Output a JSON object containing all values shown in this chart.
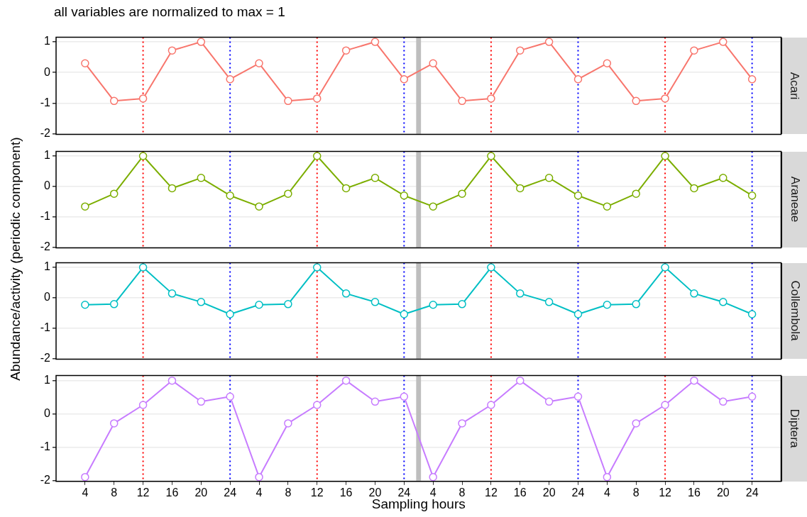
{
  "chart_data": [
    {
      "type": "line",
      "title": "all variables are normalized to max = 1",
      "ylabel": "Abundance/activity (periodic component)",
      "x": [
        "--01-01T04:00",
        "--01-01T08:00",
        "--01-01T12:00",
        "--01-01T16:00",
        "--01-01T20:00",
        "--01-02T00:00",
        "--01-02T04:00",
        "--01-02T08:00",
        "--01-02T12:00",
        "--01-02T16:00",
        "--01-02T20:00",
        "--01-03T00:00",
        "--01-03T04:00",
        "--01-03T08:00",
        "--01-03T12:00",
        "--01-03T16:00",
        "--01-03T20:00",
        "--01-04T00:00",
        "--01-04T04:00",
        "--01-04T08:00",
        "--01-04T12:00",
        "--01-04T16:00",
        "--01-04T20:00",
        "--01-05T00:00"
      ],
      "series": [
        {
          "name": "Acari",
          "color": "#f8766d",
          "values": [
            0.3,
            -0.93,
            -0.85,
            0.72,
            1,
            -0.22,
            0.3,
            -0.93,
            -0.85,
            0.72,
            1,
            -0.22,
            0.3,
            -0.93,
            -0.85,
            0.72,
            1,
            -0.22,
            0.3,
            -0.93,
            -0.85,
            0.72,
            1,
            -0.22
          ]
        }
      ],
      "xlim": [
        "--01-01T00:00",
        "--01-05T04:00"
      ],
      "xticks": [
        {
          "value": "--01-01T04:00",
          "label": "4"
        },
        {
          "value": "--01-01T08:00",
          "label": "8"
        },
        {
          "value": "--01-01T12:00",
          "label": "12"
        },
        {
          "value": "--01-01T16:00",
          "label": "16"
        },
        {
          "value": "--01-01T20:00",
          "label": "20"
        },
        {
          "value": "--01-02T00:00",
          "label": "24"
        },
        {
          "value": "--01-02T04:00",
          "label": "4"
        },
        {
          "value": "--01-02T08:00",
          "label": "8"
        },
        {
          "value": "--01-02T12:00",
          "label": "12"
        },
        {
          "value": "--01-02T16:00",
          "label": "16"
        },
        {
          "value": "--01-02T20:00",
          "label": "20"
        },
        {
          "value": "--01-03T00:00",
          "label": "24"
        },
        {
          "value": "--01-03T04:00",
          "label": "4"
        },
        {
          "value": "--01-03T08:00",
          "label": "8"
        },
        {
          "value": "--01-03T12:00",
          "label": "12"
        },
        {
          "value": "--01-03T16:00",
          "label": "16"
        },
        {
          "value": "--01-03T20:00",
          "label": "20"
        },
        {
          "value": "--01-04T00:00",
          "label": "24"
        },
        {
          "value": "--01-04T04:00",
          "label": "4"
        },
        {
          "value": "--01-04T08:00",
          "label": "8"
        },
        {
          "value": "--01-04T12:00",
          "label": "12"
        },
        {
          "value": "--01-04T16:00",
          "label": "16"
        },
        {
          "value": "--01-04T20:00",
          "label": "20"
        },
        {
          "value": "--01-05T00:00",
          "label": "24"
        }
      ],
      "ylim": [
        -2.02,
        1.15
      ],
      "yticks": [
        -2,
        -1,
        0,
        1
      ],
      "tick_labels": "y",
      "grid": "y",
      "legend": false,
      "marker": "circle",
      "line_style": "solid",
      "ref_lines": [
        {
          "axis": "x",
          "value": "--01-01T12:00",
          "color": "#ff0000",
          "line_style": "dotted"
        },
        {
          "axis": "x",
          "value": "--01-02T00:00",
          "color": "#0000ff",
          "line_style": "dotted"
        },
        {
          "axis": "x",
          "value": "--01-02T12:00",
          "color": "#ff0000",
          "line_style": "dotted"
        },
        {
          "axis": "x",
          "value": "--01-03T00:00",
          "color": "#0000ff",
          "line_style": "dotted"
        },
        {
          "axis": "x",
          "value": "--01-03T12:00",
          "color": "#ff0000",
          "line_style": "dotted"
        },
        {
          "axis": "x",
          "value": "--01-04T00:00",
          "color": "#0000ff",
          "line_style": "dotted"
        },
        {
          "axis": "x",
          "value": "--01-04T12:00",
          "color": "#ff0000",
          "line_style": "dotted"
        },
        {
          "axis": "x",
          "value": "--01-05T00:00",
          "color": "#0000ff",
          "line_style": "dotted"
        }
      ],
      "bands": [
        {
          "axis": "x",
          "from": "--01-03T01:40",
          "to": "--01-03T02:20",
          "color": "#bebebe"
        }
      ]
    },
    {
      "type": "line",
      "x": [
        "--01-01T04:00",
        "--01-01T08:00",
        "--01-01T12:00",
        "--01-01T16:00",
        "--01-01T20:00",
        "--01-02T00:00",
        "--01-02T04:00",
        "--01-02T08:00",
        "--01-02T12:00",
        "--01-02T16:00",
        "--01-02T20:00",
        "--01-03T00:00",
        "--01-03T04:00",
        "--01-03T08:00",
        "--01-03T12:00",
        "--01-03T16:00",
        "--01-03T20:00",
        "--01-04T00:00",
        "--01-04T04:00",
        "--01-04T08:00",
        "--01-04T12:00",
        "--01-04T16:00",
        "--01-04T20:00",
        "--01-05T00:00"
      ],
      "series": [
        {
          "name": "Araneae",
          "color": "#7cae00",
          "values": [
            -0.66,
            -0.24,
            1,
            -0.06,
            0.28,
            -0.3,
            -0.66,
            -0.24,
            1,
            -0.06,
            0.28,
            -0.3,
            -0.66,
            -0.24,
            1,
            -0.06,
            0.28,
            -0.3,
            -0.66,
            -0.24,
            1,
            -0.06,
            0.28,
            -0.3
          ]
        }
      ],
      "xlim": [
        "--01-01T00:00",
        "--01-05T04:00"
      ],
      "xticks": [
        {
          "value": "--01-01T04:00",
          "label": "4"
        },
        {
          "value": "--01-01T08:00",
          "label": "8"
        },
        {
          "value": "--01-01T12:00",
          "label": "12"
        },
        {
          "value": "--01-01T16:00",
          "label": "16"
        },
        {
          "value": "--01-01T20:00",
          "label": "20"
        },
        {
          "value": "--01-02T00:00",
          "label": "24"
        },
        {
          "value": "--01-02T04:00",
          "label": "4"
        },
        {
          "value": "--01-02T08:00",
          "label": "8"
        },
        {
          "value": "--01-02T12:00",
          "label": "12"
        },
        {
          "value": "--01-02T16:00",
          "label": "16"
        },
        {
          "value": "--01-02T20:00",
          "label": "20"
        },
        {
          "value": "--01-03T00:00",
          "label": "24"
        },
        {
          "value": "--01-03T04:00",
          "label": "4"
        },
        {
          "value": "--01-03T08:00",
          "label": "8"
        },
        {
          "value": "--01-03T12:00",
          "label": "12"
        },
        {
          "value": "--01-03T16:00",
          "label": "16"
        },
        {
          "value": "--01-03T20:00",
          "label": "20"
        },
        {
          "value": "--01-04T00:00",
          "label": "24"
        },
        {
          "value": "--01-04T04:00",
          "label": "4"
        },
        {
          "value": "--01-04T08:00",
          "label": "8"
        },
        {
          "value": "--01-04T12:00",
          "label": "12"
        },
        {
          "value": "--01-04T16:00",
          "label": "16"
        },
        {
          "value": "--01-04T20:00",
          "label": "20"
        },
        {
          "value": "--01-05T00:00",
          "label": "24"
        }
      ],
      "ylim": [
        -2.02,
        1.15
      ],
      "yticks": [
        -2,
        -1,
        0,
        1
      ],
      "tick_labels": "y",
      "grid": "y",
      "legend": false,
      "marker": "circle",
      "line_style": "solid",
      "ref_lines": [
        {
          "axis": "x",
          "value": "--01-01T12:00",
          "color": "#ff0000",
          "line_style": "dotted"
        },
        {
          "axis": "x",
          "value": "--01-02T00:00",
          "color": "#0000ff",
          "line_style": "dotted"
        },
        {
          "axis": "x",
          "value": "--01-02T12:00",
          "color": "#ff0000",
          "line_style": "dotted"
        },
        {
          "axis": "x",
          "value": "--01-03T00:00",
          "color": "#0000ff",
          "line_style": "dotted"
        },
        {
          "axis": "x",
          "value": "--01-03T12:00",
          "color": "#ff0000",
          "line_style": "dotted"
        },
        {
          "axis": "x",
          "value": "--01-04T00:00",
          "color": "#0000ff",
          "line_style": "dotted"
        },
        {
          "axis": "x",
          "value": "--01-04T12:00",
          "color": "#ff0000",
          "line_style": "dotted"
        },
        {
          "axis": "x",
          "value": "--01-05T00:00",
          "color": "#0000ff",
          "line_style": "dotted"
        }
      ],
      "bands": [
        {
          "axis": "x",
          "from": "--01-03T01:40",
          "to": "--01-03T02:20",
          "color": "#bebebe"
        }
      ]
    },
    {
      "type": "line",
      "x": [
        "--01-01T04:00",
        "--01-01T08:00",
        "--01-01T12:00",
        "--01-01T16:00",
        "--01-01T20:00",
        "--01-02T00:00",
        "--01-02T04:00",
        "--01-02T08:00",
        "--01-02T12:00",
        "--01-02T16:00",
        "--01-02T20:00",
        "--01-03T00:00",
        "--01-03T04:00",
        "--01-03T08:00",
        "--01-03T12:00",
        "--01-03T16:00",
        "--01-03T20:00",
        "--01-04T00:00",
        "--01-04T04:00",
        "--01-04T08:00",
        "--01-04T12:00",
        "--01-04T16:00",
        "--01-04T20:00",
        "--01-05T00:00"
      ],
      "series": [
        {
          "name": "Collembola",
          "color": "#00bfc4",
          "values": [
            -0.23,
            -0.21,
            1,
            0.14,
            -0.14,
            -0.54,
            -0.23,
            -0.21,
            1,
            0.14,
            -0.14,
            -0.54,
            -0.23,
            -0.21,
            1,
            0.14,
            -0.14,
            -0.54,
            -0.23,
            -0.21,
            1,
            0.14,
            -0.14,
            -0.54
          ]
        }
      ],
      "xlim": [
        "--01-01T00:00",
        "--01-05T04:00"
      ],
      "xticks": [
        {
          "value": "--01-01T04:00",
          "label": "4"
        },
        {
          "value": "--01-01T08:00",
          "label": "8"
        },
        {
          "value": "--01-01T12:00",
          "label": "12"
        },
        {
          "value": "--01-01T16:00",
          "label": "16"
        },
        {
          "value": "--01-01T20:00",
          "label": "20"
        },
        {
          "value": "--01-02T00:00",
          "label": "24"
        },
        {
          "value": "--01-02T04:00",
          "label": "4"
        },
        {
          "value": "--01-02T08:00",
          "label": "8"
        },
        {
          "value": "--01-02T12:00",
          "label": "12"
        },
        {
          "value": "--01-02T16:00",
          "label": "16"
        },
        {
          "value": "--01-02T20:00",
          "label": "20"
        },
        {
          "value": "--01-03T00:00",
          "label": "24"
        },
        {
          "value": "--01-03T04:00",
          "label": "4"
        },
        {
          "value": "--01-03T08:00",
          "label": "8"
        },
        {
          "value": "--01-03T12:00",
          "label": "12"
        },
        {
          "value": "--01-03T16:00",
          "label": "16"
        },
        {
          "value": "--01-03T20:00",
          "label": "20"
        },
        {
          "value": "--01-04T00:00",
          "label": "24"
        },
        {
          "value": "--01-04T04:00",
          "label": "4"
        },
        {
          "value": "--01-04T08:00",
          "label": "8"
        },
        {
          "value": "--01-04T12:00",
          "label": "12"
        },
        {
          "value": "--01-04T16:00",
          "label": "16"
        },
        {
          "value": "--01-04T20:00",
          "label": "20"
        },
        {
          "value": "--01-05T00:00",
          "label": "24"
        }
      ],
      "ylim": [
        -2.02,
        1.15
      ],
      "yticks": [
        -2,
        -1,
        0,
        1
      ],
      "tick_labels": "y",
      "grid": "y",
      "legend": false,
      "marker": "circle",
      "line_style": "solid",
      "ref_lines": [
        {
          "axis": "x",
          "value": "--01-01T12:00",
          "color": "#ff0000",
          "line_style": "dotted"
        },
        {
          "axis": "x",
          "value": "--01-02T00:00",
          "color": "#0000ff",
          "line_style": "dotted"
        },
        {
          "axis": "x",
          "value": "--01-02T12:00",
          "color": "#ff0000",
          "line_style": "dotted"
        },
        {
          "axis": "x",
          "value": "--01-03T00:00",
          "color": "#0000ff",
          "line_style": "dotted"
        },
        {
          "axis": "x",
          "value": "--01-03T12:00",
          "color": "#ff0000",
          "line_style": "dotted"
        },
        {
          "axis": "x",
          "value": "--01-04T00:00",
          "color": "#0000ff",
          "line_style": "dotted"
        },
        {
          "axis": "x",
          "value": "--01-04T12:00",
          "color": "#ff0000",
          "line_style": "dotted"
        },
        {
          "axis": "x",
          "value": "--01-05T00:00",
          "color": "#0000ff",
          "line_style": "dotted"
        }
      ],
      "bands": [
        {
          "axis": "x",
          "from": "--01-03T01:40",
          "to": "--01-03T02:20",
          "color": "#bebebe"
        }
      ]
    },
    {
      "type": "line",
      "xlabel": "Sampling hours",
      "x": [
        "--01-01T04:00",
        "--01-01T08:00",
        "--01-01T12:00",
        "--01-01T16:00",
        "--01-01T20:00",
        "--01-02T00:00",
        "--01-02T04:00",
        "--01-02T08:00",
        "--01-02T12:00",
        "--01-02T16:00",
        "--01-02T20:00",
        "--01-03T00:00",
        "--01-03T04:00",
        "--01-03T08:00",
        "--01-03T12:00",
        "--01-03T16:00",
        "--01-03T20:00",
        "--01-04T00:00",
        "--01-04T04:00",
        "--01-04T08:00",
        "--01-04T12:00",
        "--01-04T16:00",
        "--01-04T20:00",
        "--01-05T00:00"
      ],
      "series": [
        {
          "name": "Diptera",
          "color": "#c77cff",
          "values": [
            -1.89,
            -0.28,
            0.27,
            1,
            0.37,
            0.52,
            -1.89,
            -0.28,
            0.27,
            1,
            0.37,
            0.52,
            -1.89,
            -0.28,
            0.27,
            1,
            0.37,
            0.52,
            -1.89,
            -0.28,
            0.27,
            1,
            0.37,
            0.52
          ]
        }
      ],
      "xlim": [
        "--01-01T00:00",
        "--01-05T04:00"
      ],
      "xticks": [
        {
          "value": "--01-01T04:00",
          "label": "4"
        },
        {
          "value": "--01-01T08:00",
          "label": "8"
        },
        {
          "value": "--01-01T12:00",
          "label": "12"
        },
        {
          "value": "--01-01T16:00",
          "label": "16"
        },
        {
          "value": "--01-01T20:00",
          "label": "20"
        },
        {
          "value": "--01-02T00:00",
          "label": "24"
        },
        {
          "value": "--01-02T04:00",
          "label": "4"
        },
        {
          "value": "--01-02T08:00",
          "label": "8"
        },
        {
          "value": "--01-02T12:00",
          "label": "12"
        },
        {
          "value": "--01-02T16:00",
          "label": "16"
        },
        {
          "value": "--01-02T20:00",
          "label": "20"
        },
        {
          "value": "--01-03T00:00",
          "label": "24"
        },
        {
          "value": "--01-03T04:00",
          "label": "4"
        },
        {
          "value": "--01-03T08:00",
          "label": "8"
        },
        {
          "value": "--01-03T12:00",
          "label": "12"
        },
        {
          "value": "--01-03T16:00",
          "label": "16"
        },
        {
          "value": "--01-03T20:00",
          "label": "20"
        },
        {
          "value": "--01-04T00:00",
          "label": "24"
        },
        {
          "value": "--01-04T04:00",
          "label": "4"
        },
        {
          "value": "--01-04T08:00",
          "label": "8"
        },
        {
          "value": "--01-04T12:00",
          "label": "12"
        },
        {
          "value": "--01-04T16:00",
          "label": "16"
        },
        {
          "value": "--01-04T20:00",
          "label": "20"
        },
        {
          "value": "--01-05T00:00",
          "label": "24"
        }
      ],
      "ylim": [
        -2.02,
        1.15
      ],
      "yticks": [
        -2,
        -1,
        0,
        1
      ],
      "grid": "y",
      "legend": false,
      "marker": "circle",
      "line_style": "solid",
      "ref_lines": [
        {
          "axis": "x",
          "value": "--01-01T12:00",
          "color": "#ff0000",
          "line_style": "dotted"
        },
        {
          "axis": "x",
          "value": "--01-02T00:00",
          "color": "#0000ff",
          "line_style": "dotted"
        },
        {
          "axis": "x",
          "value": "--01-02T12:00",
          "color": "#ff0000",
          "line_style": "dotted"
        },
        {
          "axis": "x",
          "value": "--01-03T00:00",
          "color": "#0000ff",
          "line_style": "dotted"
        },
        {
          "axis": "x",
          "value": "--01-03T12:00",
          "color": "#ff0000",
          "line_style": "dotted"
        },
        {
          "axis": "x",
          "value": "--01-04T00:00",
          "color": "#0000ff",
          "line_style": "dotted"
        },
        {
          "axis": "x",
          "value": "--01-04T12:00",
          "color": "#ff0000",
          "line_style": "dotted"
        },
        {
          "axis": "x",
          "value": "--01-05T00:00",
          "color": "#0000ff",
          "line_style": "dotted"
        }
      ],
      "bands": [
        {
          "axis": "x",
          "from": "--01-03T01:40",
          "to": "--01-03T02:20",
          "color": "#bebebe"
        }
      ]
    }
  ]
}
